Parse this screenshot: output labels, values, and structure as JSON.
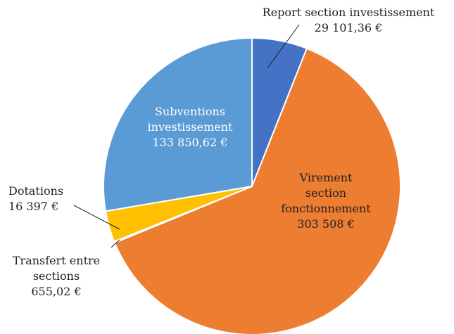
{
  "chart_data": {
    "type": "pie",
    "categories": [
      "Report section investissement",
      "Virement section fonctionnement",
      "Transfert entre sections",
      "Dotations",
      "Subventions investissement"
    ],
    "values": [
      29101.36,
      303508,
      655.02,
      16397,
      133850.62
    ],
    "value_labels": [
      "29 101,36 €",
      "303 508 €",
      "655,02 €",
      "16 397 €",
      "133 850,62 €"
    ],
    "colors": [
      "#4472c4",
      "#ed7d31",
      "#a5a5a5",
      "#ffc000",
      "#5b9bd5"
    ]
  }
}
